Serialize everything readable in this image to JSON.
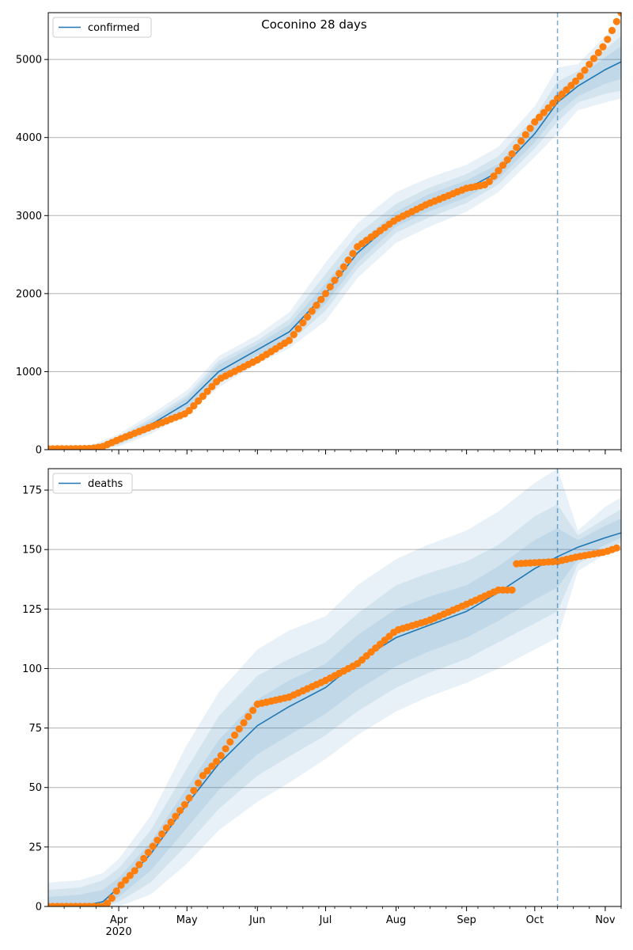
{
  "title": "Coconino 28 days",
  "colors": {
    "model_line": "#1f77b4",
    "observed": "#ff7f0e",
    "band": "#1f77b4",
    "grid": "#b0b0b0",
    "forecast_marker": "#1f77b4"
  },
  "x_axis": {
    "start": "2020-03-01",
    "end": "2020-11-08",
    "month_ticks": [
      {
        "date": "2020-04-01",
        "label": "Apr",
        "sublabel": "2020"
      },
      {
        "date": "2020-05-01",
        "label": "May",
        "sublabel": ""
      },
      {
        "date": "2020-06-01",
        "label": "Jun",
        "sublabel": ""
      },
      {
        "date": "2020-07-01",
        "label": "Jul",
        "sublabel": ""
      },
      {
        "date": "2020-08-01",
        "label": "Aug",
        "sublabel": ""
      },
      {
        "date": "2020-09-01",
        "label": "Sep",
        "sublabel": ""
      },
      {
        "date": "2020-10-01",
        "label": "Oct",
        "sublabel": ""
      },
      {
        "date": "2020-11-01",
        "label": "Nov",
        "sublabel": ""
      }
    ],
    "forecast_start": "2020-10-11"
  },
  "chart_data": [
    {
      "type": "line",
      "legend": "confirmed",
      "legend_position": "top-left",
      "ylim": [
        0,
        5600
      ],
      "yticks": [
        0,
        1000,
        2000,
        3000,
        4000,
        5000
      ],
      "grid": "horizontal",
      "model": {
        "x": [
          "2020-03-01",
          "2020-03-20",
          "2020-04-01",
          "2020-04-15",
          "2020-05-01",
          "2020-05-15",
          "2020-06-01",
          "2020-06-15",
          "2020-07-01",
          "2020-07-15",
          "2020-08-01",
          "2020-08-15",
          "2020-09-01",
          "2020-09-15",
          "2020-10-01",
          "2020-10-11",
          "2020-10-20",
          "2020-11-01",
          "2020-11-08"
        ],
        "y": [
          0,
          10,
          110,
          320,
          600,
          1000,
          1280,
          1510,
          2000,
          2520,
          2950,
          3160,
          3340,
          3560,
          4050,
          4450,
          4660,
          4870,
          4970
        ],
        "bands": [
          {
            "lower": [
              0,
              0,
              40,
              200,
              450,
              800,
              1100,
              1300,
              1650,
              2200,
              2650,
              2850,
              3050,
              3300,
              3750,
              4050,
              4350,
              4450,
              4500
            ],
            "upper": [
              20,
              60,
              200,
              450,
              760,
              1200,
              1470,
              1760,
              2400,
              2900,
              3300,
              3480,
              3650,
              3880,
              4400,
              4900,
              4940,
              5300,
              5500
            ]
          },
          {
            "lower": [
              0,
              0,
              60,
              240,
              500,
              860,
              1160,
              1370,
              1780,
              2320,
              2780,
              2970,
              3160,
              3400,
              3860,
              4200,
              4450,
              4560,
              4600
            ],
            "upper": [
              15,
              40,
              170,
              400,
              700,
              1140,
              1400,
              1670,
              2250,
              2760,
              3150,
              3350,
              3530,
              3760,
              4260,
              4720,
              4850,
              5130,
              5300
            ]
          },
          {
            "lower": [
              0,
              2,
              80,
              270,
              540,
              910,
              1210,
              1420,
              1870,
              2400,
              2860,
              3050,
              3230,
              3470,
              3940,
              4310,
              4530,
              4690,
              4750
            ],
            "upper": [
              10,
              25,
              140,
              370,
              660,
              1090,
              1350,
              1600,
              2130,
              2640,
              3050,
              3270,
              3450,
              3660,
              4160,
              4590,
              4770,
              5030,
              5170
            ]
          }
        ]
      },
      "observed": {
        "x": [
          "2020-03-01",
          "2020-03-20",
          "2020-03-25",
          "2020-04-01",
          "2020-04-15",
          "2020-05-01",
          "2020-05-15",
          "2020-06-01",
          "2020-06-15",
          "2020-07-01",
          "2020-07-15",
          "2020-08-01",
          "2020-08-15",
          "2020-09-01",
          "2020-09-10",
          "2020-09-20",
          "2020-10-01",
          "2020-10-11",
          "2020-10-20",
          "2020-11-01",
          "2020-11-08"
        ],
        "y": [
          10,
          15,
          40,
          130,
          290,
          470,
          900,
          1150,
          1400,
          2000,
          2600,
          2950,
          3150,
          3350,
          3400,
          3750,
          4200,
          4500,
          4750,
          5200,
          5600
        ]
      }
    },
    {
      "type": "line",
      "legend": "deaths",
      "legend_position": "top-left",
      "ylim": [
        0,
        184
      ],
      "yticks": [
        0,
        25,
        50,
        75,
        100,
        125,
        150,
        175
      ],
      "grid": "horizontal",
      "model": {
        "x": [
          "2020-03-01",
          "2020-03-15",
          "2020-03-25",
          "2020-04-01",
          "2020-04-15",
          "2020-05-01",
          "2020-05-15",
          "2020-06-01",
          "2020-06-15",
          "2020-07-01",
          "2020-07-15",
          "2020-08-01",
          "2020-08-15",
          "2020-09-01",
          "2020-09-15",
          "2020-10-01",
          "2020-10-11",
          "2020-10-20",
          "2020-11-01",
          "2020-11-08"
        ],
        "y": [
          0,
          0,
          2,
          8,
          22,
          43,
          60,
          76,
          84,
          92,
          103,
          113,
          118,
          124,
          132,
          142,
          147,
          151,
          155,
          157
        ],
        "bands": [
          {
            "lower": [
              0,
              0,
              0,
              0,
              5,
              18,
              32,
              44,
              52,
              62,
              72,
              82,
              88,
              94,
              100,
              108,
              113,
              141,
              148,
              150
            ],
            "upper": [
              10,
              11,
              14,
              20,
              38,
              68,
              90,
              108,
              116,
              122,
              135,
              146,
              152,
              158,
              166,
              178,
              184,
              158,
              168,
              172
            ]
          },
          {
            "lower": [
              0,
              0,
              0,
              2,
              10,
              26,
              41,
              55,
              63,
              72,
              82,
              92,
              98,
              104,
              111,
              119,
              124,
              144,
              150,
              153
            ],
            "upper": [
              7,
              8,
              11,
              16,
              32,
              58,
              80,
              97,
              104,
              111,
              123,
              135,
              140,
              145,
              152,
              164,
              169,
              156,
              163,
              167
            ]
          },
          {
            "lower": [
              0,
              0,
              0,
              4,
              15,
              33,
              49,
              64,
              72,
              81,
              91,
              101,
              107,
              113,
              120,
              129,
              134,
              146,
              152,
              155
            ],
            "upper": [
              4,
              5,
              7,
              12,
              27,
              50,
              70,
              87,
              95,
              102,
              114,
              125,
              130,
              135,
              143,
              154,
              159,
              154,
              160,
              163
            ]
          }
        ]
      },
      "observed": {
        "x": [
          "2020-03-01",
          "2020-03-25",
          "2020-03-28",
          "2020-04-01",
          "2020-04-08",
          "2020-04-15",
          "2020-04-22",
          "2020-05-01",
          "2020-05-08",
          "2020-05-15",
          "2020-05-22",
          "2020-06-01",
          "2020-06-15",
          "2020-07-01",
          "2020-07-15",
          "2020-08-01",
          "2020-08-15",
          "2020-09-01",
          "2020-09-15",
          "2020-09-21",
          "2020-09-22",
          "2020-10-11",
          "2020-10-20",
          "2020-11-01",
          "2020-11-07"
        ],
        "y": [
          0,
          0,
          2,
          8,
          15,
          24,
          33,
          44,
          55,
          62,
          72,
          85,
          88,
          95,
          102,
          116,
          120,
          127,
          133,
          133,
          144,
          145,
          147,
          149,
          151
        ]
      }
    }
  ]
}
